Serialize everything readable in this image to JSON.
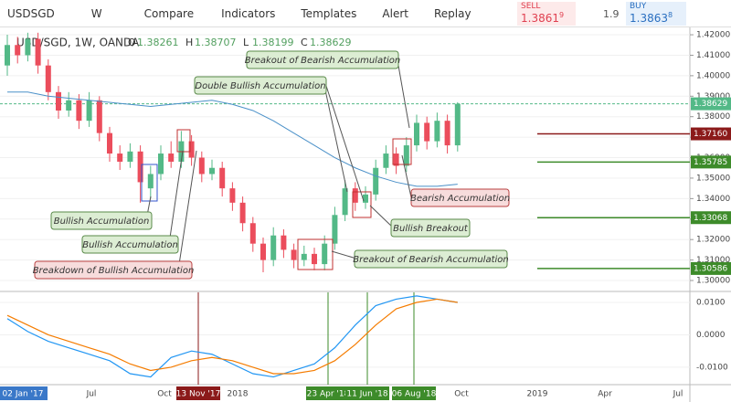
{
  "toolbar": {
    "symbol": "USDSGD",
    "interval": "W",
    "buttons": [
      "Compare",
      "Indicators",
      "Templates",
      "Alert",
      "Replay"
    ]
  },
  "quote": {
    "sell_label": "SELL",
    "sell": "1.3861",
    "sell_sup": "9",
    "spread": "1.9",
    "buy_label": "BUY",
    "buy": "1.3863",
    "buy_sup": "8"
  },
  "legend": {
    "title": "USD/SGD, 1W, OANDA",
    "ohlc": [
      {
        "k": "O",
        "v": "1.38261"
      },
      {
        "k": "H",
        "v": "1.38707"
      },
      {
        "k": "L",
        "v": "1.38199"
      },
      {
        "k": "C",
        "v": "1.38629"
      }
    ]
  },
  "chart_data": {
    "type": "candlestick",
    "up_color": "#53b987",
    "down_color": "#eb4d5c",
    "ma_color": "#4a90c8",
    "ylim": [
      1.2951,
      1.4227
    ],
    "yticks": [
      {
        "value": 1.42,
        "label": "1.42000"
      },
      {
        "value": 1.41,
        "label": "1.41000"
      },
      {
        "value": 1.4,
        "label": "1.40000"
      },
      {
        "value": 1.39,
        "label": "1.39000"
      },
      {
        "value": 1.38,
        "label": "1.38000"
      },
      {
        "value": 1.37,
        "label": "1.37000"
      },
      {
        "value": 1.36,
        "label": "1.36000"
      },
      {
        "value": 1.35,
        "label": "1.35000"
      },
      {
        "value": 1.34,
        "label": "1.34000"
      },
      {
        "value": 1.33,
        "label": "1.33000"
      },
      {
        "value": 1.32,
        "label": "1.32000"
      },
      {
        "value": 1.31,
        "label": "1.31000"
      },
      {
        "value": 1.3,
        "label": "1.30000"
      }
    ],
    "last": {
      "value": 1.38629,
      "label": "1.38629",
      "color": "#53b987"
    },
    "levels": [
      {
        "value": 1.3716,
        "label": "1.37160",
        "color": "#8b1a1a"
      },
      {
        "value": 1.35785,
        "label": "1.35785",
        "color": "#3d8b2a"
      },
      {
        "value": 1.33068,
        "label": "1.33068",
        "color": "#3d8b2a"
      },
      {
        "value": 1.30586,
        "label": "1.30586",
        "color": "#3d8b2a"
      }
    ],
    "candles": [
      [
        1.405,
        1.42,
        1.4,
        1.415
      ],
      [
        1.415,
        1.419,
        1.406,
        1.41
      ],
      [
        1.41,
        1.421,
        1.407,
        1.418
      ],
      [
        1.418,
        1.421,
        1.401,
        1.405
      ],
      [
        1.405,
        1.408,
        1.388,
        1.392
      ],
      [
        1.392,
        1.395,
        1.379,
        1.383
      ],
      [
        1.383,
        1.392,
        1.38,
        1.388
      ],
      [
        1.388,
        1.391,
        1.374,
        1.378
      ],
      [
        1.378,
        1.392,
        1.375,
        1.388
      ],
      [
        1.388,
        1.39,
        1.368,
        1.372
      ],
      [
        1.372,
        1.375,
        1.358,
        1.362
      ],
      [
        1.362,
        1.366,
        1.354,
        1.358
      ],
      [
        1.358,
        1.367,
        1.355,
        1.363
      ],
      [
        1.363,
        1.366,
        1.338,
        1.348
      ],
      [
        1.345,
        1.356,
        1.34,
        1.352
      ],
      [
        1.352,
        1.366,
        1.349,
        1.362
      ],
      [
        1.362,
        1.368,
        1.355,
        1.358
      ],
      [
        1.358,
        1.373,
        1.355,
        1.368
      ],
      [
        1.368,
        1.371,
        1.356,
        1.36
      ],
      [
        1.36,
        1.363,
        1.348,
        1.352
      ],
      [
        1.352,
        1.359,
        1.349,
        1.355
      ],
      [
        1.355,
        1.358,
        1.341,
        1.345
      ],
      [
        1.345,
        1.348,
        1.334,
        1.338
      ],
      [
        1.338,
        1.341,
        1.324,
        1.328
      ],
      [
        1.328,
        1.331,
        1.314,
        1.318
      ],
      [
        1.318,
        1.321,
        1.304,
        1.31
      ],
      [
        1.31,
        1.326,
        1.307,
        1.322
      ],
      [
        1.322,
        1.325,
        1.311,
        1.315
      ],
      [
        1.315,
        1.318,
        1.306,
        1.31
      ],
      [
        1.31,
        1.317,
        1.307,
        1.313
      ],
      [
        1.313,
        1.316,
        1.305,
        1.308
      ],
      [
        1.308,
        1.322,
        1.305,
        1.318
      ],
      [
        1.318,
        1.336,
        1.315,
        1.332
      ],
      [
        1.332,
        1.349,
        1.329,
        1.345
      ],
      [
        1.345,
        1.348,
        1.334,
        1.338
      ],
      [
        1.338,
        1.346,
        1.335,
        1.342
      ],
      [
        1.342,
        1.359,
        1.339,
        1.355
      ],
      [
        1.355,
        1.366,
        1.352,
        1.362
      ],
      [
        1.362,
        1.365,
        1.352,
        1.356
      ],
      [
        1.356,
        1.37,
        1.353,
        1.366
      ],
      [
        1.366,
        1.381,
        1.363,
        1.377
      ],
      [
        1.377,
        1.38,
        1.364,
        1.368
      ],
      [
        1.368,
        1.382,
        1.365,
        1.378
      ],
      [
        1.378,
        1.381,
        1.362,
        1.366
      ],
      [
        1.366,
        1.38707,
        1.363,
        1.38629
      ]
    ],
    "ma": [
      1.392,
      1.392,
      1.39,
      1.389,
      1.388,
      1.387,
      1.386,
      1.385,
      1.386,
      1.387,
      1.388,
      1.386,
      1.383,
      1.378,
      1.372,
      1.366,
      1.36,
      1.355,
      1.351,
      1.348,
      1.346,
      1.346,
      1.347
    ],
    "annotations": [
      {
        "text": "Breakout of Bearish Accumulation",
        "kind": "green"
      },
      {
        "text": "Double Bullish Accumulation",
        "kind": "green"
      },
      {
        "text": "Bullish Accumulation",
        "kind": "green"
      },
      {
        "text": "Bullish Accumulation",
        "kind": "green"
      },
      {
        "text": "Breakdown of Bullish Accumulation",
        "kind": "red"
      },
      {
        "text": "Bearish Accumulation",
        "kind": "red"
      },
      {
        "text": "Bullish Breakout",
        "kind": "green"
      },
      {
        "text": "Breakout of Bearish Accumulation",
        "kind": "green"
      }
    ],
    "macd": {
      "ylim": [
        -0.0151,
        0.0131
      ],
      "yticks": [
        {
          "value": 0.01,
          "label": "0.0100"
        },
        {
          "value": 0,
          "label": "0.0000"
        },
        {
          "value": -0.01,
          "label": "-0.0100"
        }
      ],
      "macd_color": "#2196f3",
      "signal_color": "#f57c00",
      "macd": [
        0.005,
        0.001,
        -0.002,
        -0.004,
        -0.006,
        -0.008,
        -0.012,
        -0.013,
        -0.007,
        -0.005,
        -0.006,
        -0.009,
        -0.012,
        -0.013,
        -0.011,
        -0.009,
        -0.004,
        0.003,
        0.009,
        0.011,
        0.012,
        0.011,
        0.01
      ],
      "signal": [
        0.006,
        0.003,
        0.0,
        -0.002,
        -0.004,
        -0.006,
        -0.009,
        -0.011,
        -0.01,
        -0.008,
        -0.007,
        -0.008,
        -0.01,
        -0.012,
        -0.012,
        -0.011,
        -0.008,
        -0.003,
        0.003,
        0.008,
        0.01,
        0.011,
        0.01
      ]
    },
    "time_labels": [
      "02 Jan '17",
      "Jul",
      "Oct",
      "2018",
      "Oct",
      "2019",
      "Apr",
      "Jul"
    ],
    "events": [
      {
        "label": "13 Nov '17",
        "color": "#8b1a1a"
      },
      {
        "label": "23 Apr '18",
        "color": "#3d8b2a"
      },
      {
        "label": "11 Jun '18",
        "color": "#3d8b2a"
      },
      {
        "label": "06 Aug '18",
        "color": "#3d8b2a"
      }
    ]
  }
}
